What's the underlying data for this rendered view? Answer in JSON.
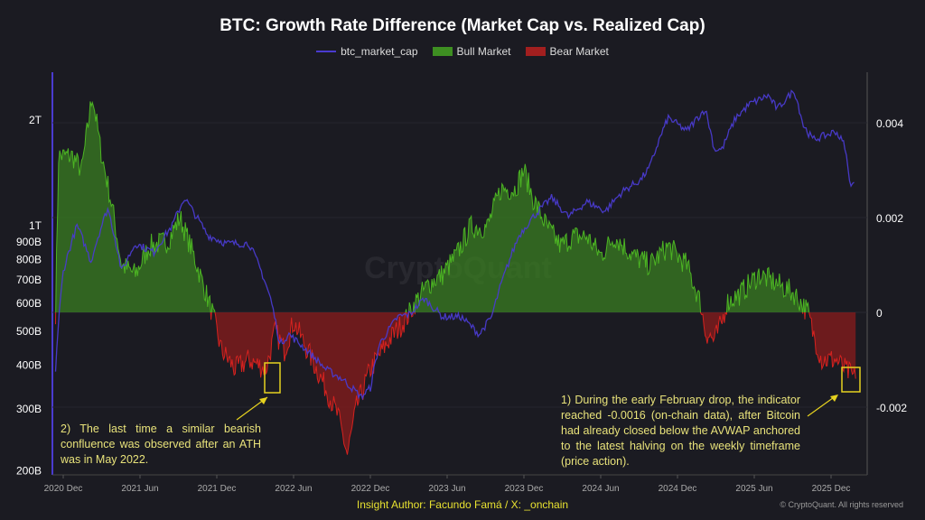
{
  "chart_data": {
    "type": "area+line",
    "title": "BTC: Growth Rate Difference (Market Cap vs. Realized Cap)",
    "legend": [
      {
        "name": "btc_market_cap",
        "color": "#4a3bd0"
      },
      {
        "name": "Bull Market",
        "color": "#3e8f22"
      },
      {
        "name": "Bear Market",
        "color": "#a21f1f"
      }
    ],
    "legend_position": "top-center",
    "x_ticks": [
      "2020 Dec",
      "2021 Jun",
      "2021 Dec",
      "2022 Jun",
      "2022 Dec",
      "2023 Jun",
      "2023 Dec",
      "2024 Jun",
      "2024 Dec",
      "2025 Jun",
      "2025 Dec"
    ],
    "x_tick_years": [
      2020.92,
      2021.42,
      2021.92,
      2022.42,
      2022.92,
      2023.42,
      2023.92,
      2024.42,
      2024.92,
      2025.42,
      2025.92
    ],
    "left_axis": {
      "scale": "log",
      "unit": "USD billions",
      "ticks": [
        {
          "label": "2T",
          "value": 2000
        },
        {
          "label": "1T",
          "value": 1000
        },
        {
          "label": "900B",
          "value": 900
        },
        {
          "label": "800B",
          "value": 800
        },
        {
          "label": "700B",
          "value": 700
        },
        {
          "label": "600B",
          "value": 600
        },
        {
          "label": "500B",
          "value": 500
        },
        {
          "label": "400B",
          "value": 400
        },
        {
          "label": "300B",
          "value": 300
        },
        {
          "label": "200B",
          "value": 200
        }
      ]
    },
    "right_axis": {
      "scale": "linear",
      "ticks": [
        {
          "label": "0.004",
          "value": 0.004
        },
        {
          "label": "0.002",
          "value": 0.002
        },
        {
          "label": "0",
          "value": 0
        },
        {
          "label": "-0.002",
          "value": -0.002
        }
      ]
    },
    "growth_rate_difference": [
      [
        2020.87,
        0
      ],
      [
        2020.89,
        0.0033
      ],
      [
        2020.98,
        0.0033
      ],
      [
        2021.04,
        0.003
      ],
      [
        2021.11,
        0.0046
      ],
      [
        2021.16,
        0.0035
      ],
      [
        2021.24,
        0.0022
      ],
      [
        2021.3,
        0.001
      ],
      [
        2021.39,
        0.0008
      ],
      [
        2021.48,
        0.0014
      ],
      [
        2021.6,
        0.0015
      ],
      [
        2021.68,
        0.002
      ],
      [
        2021.77,
        0.0012
      ],
      [
        2021.86,
        0.0003
      ],
      [
        2021.89,
        0
      ],
      [
        2021.95,
        -0.0008
      ],
      [
        2022.04,
        -0.0012
      ],
      [
        2022.13,
        -0.001
      ],
      [
        2022.24,
        -0.0012
      ],
      [
        2022.3,
        -0.0004
      ],
      [
        2022.36,
        -0.0008
      ],
      [
        2022.42,
        -0.0002
      ],
      [
        2022.48,
        -0.0006
      ],
      [
        2022.54,
        -0.001
      ],
      [
        2022.63,
        -0.0016
      ],
      [
        2022.71,
        -0.0022
      ],
      [
        2022.77,
        -0.003
      ],
      [
        2022.83,
        -0.002
      ],
      [
        2022.92,
        -0.0012
      ],
      [
        2023.04,
        -0.0006
      ],
      [
        2023.16,
        -0.0001
      ],
      [
        2023.21,
        0.0002
      ],
      [
        2023.3,
        0.0006
      ],
      [
        2023.39,
        0.0008
      ],
      [
        2023.48,
        0.0012
      ],
      [
        2023.57,
        0.0018
      ],
      [
        2023.68,
        0.0018
      ],
      [
        2023.77,
        0.0026
      ],
      [
        2023.86,
        0.0026
      ],
      [
        2023.92,
        0.003
      ],
      [
        2023.98,
        0.0024
      ],
      [
        2024.07,
        0.0018
      ],
      [
        2024.16,
        0.0014
      ],
      [
        2024.24,
        0.0016
      ],
      [
        2024.33,
        0.0016
      ],
      [
        2024.42,
        0.0012
      ],
      [
        2024.51,
        0.0016
      ],
      [
        2024.63,
        0.0012
      ],
      [
        2024.74,
        0.001
      ],
      [
        2024.86,
        0.0014
      ],
      [
        2024.98,
        0.001
      ],
      [
        2025.07,
        0.0002
      ],
      [
        2025.1,
        -0.0004
      ],
      [
        2025.16,
        -0.0006
      ],
      [
        2025.21,
        -0.0002
      ],
      [
        2025.24,
        0.0002
      ],
      [
        2025.33,
        0.0004
      ],
      [
        2025.45,
        0.0008
      ],
      [
        2025.57,
        0.0006
      ],
      [
        2025.68,
        0.0004
      ],
      [
        2025.77,
        0
      ],
      [
        2025.8,
        -0.0004
      ],
      [
        2025.86,
        -0.001
      ],
      [
        2025.95,
        -0.001
      ],
      [
        2026.01,
        -0.0012
      ],
      [
        2026.08,
        -0.0014
      ]
    ],
    "btc_market_cap_billions": [
      [
        2020.87,
        390
      ],
      [
        2020.92,
        740
      ],
      [
        2021.01,
        1000
      ],
      [
        2021.1,
        790
      ],
      [
        2021.21,
        1120
      ],
      [
        2021.3,
        740
      ],
      [
        2021.39,
        890
      ],
      [
        2021.51,
        840
      ],
      [
        2021.63,
        1000
      ],
      [
        2021.71,
        1200
      ],
      [
        2021.77,
        1090
      ],
      [
        2021.86,
        940
      ],
      [
        2021.98,
        890
      ],
      [
        2022.13,
        890
      ],
      [
        2022.21,
        740
      ],
      [
        2022.27,
        620
      ],
      [
        2022.33,
        460
      ],
      [
        2022.39,
        490
      ],
      [
        2022.51,
        440
      ],
      [
        2022.63,
        390
      ],
      [
        2022.74,
        365
      ],
      [
        2022.86,
        325
      ],
      [
        2022.92,
        345
      ],
      [
        2022.98,
        460
      ],
      [
        2023.1,
        550
      ],
      [
        2023.18,
        560
      ],
      [
        2023.27,
        620
      ],
      [
        2023.39,
        550
      ],
      [
        2023.51,
        550
      ],
      [
        2023.63,
        490
      ],
      [
        2023.71,
        550
      ],
      [
        2023.8,
        740
      ],
      [
        2023.89,
        940
      ],
      [
        2023.98,
        1060
      ],
      [
        2024.1,
        1200
      ],
      [
        2024.21,
        1060
      ],
      [
        2024.33,
        1170
      ],
      [
        2024.45,
        1100
      ],
      [
        2024.56,
        1250
      ],
      [
        2024.68,
        1350
      ],
      [
        2024.74,
        1470
      ],
      [
        2024.86,
        2030
      ],
      [
        2024.98,
        1860
      ],
      [
        2025.1,
        2150
      ],
      [
        2025.16,
        1650
      ],
      [
        2025.21,
        1650
      ],
      [
        2025.3,
        2030
      ],
      [
        2025.39,
        2220
      ],
      [
        2025.51,
        2350
      ],
      [
        2025.57,
        2150
      ],
      [
        2025.68,
        2430
      ],
      [
        2025.74,
        1930
      ],
      [
        2025.8,
        1760
      ],
      [
        2025.89,
        1810
      ],
      [
        2025.95,
        1860
      ],
      [
        2026.01,
        1690
      ],
      [
        2026.04,
        1330
      ],
      [
        2026.07,
        1330
      ]
    ],
    "highlight_boxes": [
      {
        "from": 2022.33,
        "to": 2022.42,
        "note": "May 2022"
      },
      {
        "from": 2026.0,
        "to": 2026.1,
        "note": "early February"
      }
    ]
  },
  "annotations": {
    "left": "2) The last time a similar bearish confluence was observed after an ATH was in May 2022.",
    "right": "1) During the early February drop, the indicator reached -0.0016 (on-chain data), after Bitcoin had already closed below the AVWAP anchored to the latest halving on the weekly timeframe (price action)."
  },
  "watermark": "CryptoQuant",
  "footer": {
    "author": "Insight Author: Facundo Famá / X: _onchain",
    "copyright": "© CryptoQuant. All rights reserved"
  }
}
